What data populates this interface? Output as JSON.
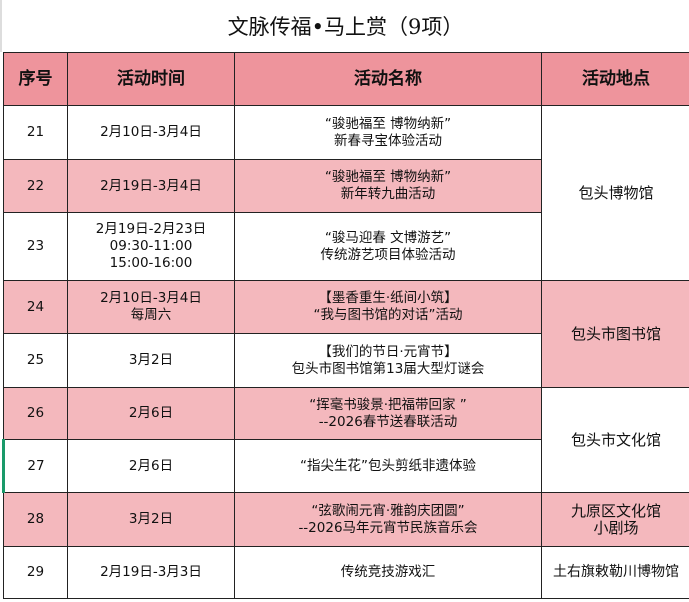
{
  "title": "文脉传福•马上赏（9项）",
  "headers": [
    "序号",
    "活动时间",
    "活动名称",
    "活动地点"
  ],
  "rows": [
    {
      "no": "21",
      "time": "2月10日-3月4日",
      "name": "“骏驰福至 博物纳新”\n新春寻宝体验活动"
    },
    {
      "no": "22",
      "time": "2月19日-3月4日",
      "name": "“骏驰福至 博物纳新”\n新年转九曲活动"
    },
    {
      "no": "23",
      "time": "2月19日-2月23日\n09:30-11:00\n15:00-16:00",
      "name": "“骏马迎春 文博游艺”\n传统游艺项目体验活动"
    },
    {
      "no": "24",
      "time": "2月10日-3月4日\n每周六",
      "name": "【墨香重生·纸间小筑】\n“我与图书馆的对话”活动"
    },
    {
      "no": "25",
      "time": "3月2日",
      "name": "【我们的节日·元宵节】\n包头市图书馆第13届大型灯谜会"
    },
    {
      "no": "26",
      "time": "2月6日",
      "name": "“挥毫书骏景·把福带回家 ”\n--2026春节送春联活动"
    },
    {
      "no": "27",
      "time": "2月6日",
      "name": "“指尖生花”包头剪纸非遗体验"
    },
    {
      "no": "28",
      "time": "3月2日",
      "name": "“弦歌闹元宵·雅韵庆团圆”\n--2026马年元宵节民族音乐会"
    },
    {
      "no": "29",
      "time": "2月19日-3月3日",
      "name": "传统竞技游戏汇"
    }
  ],
  "locations": [
    "包头博物馆",
    "包头市图书馆",
    "包头市文化馆",
    "九原区文化馆\n小剧场",
    "土右旗敕勒川博物馆"
  ],
  "colors": {
    "header": "#ee949c",
    "highlight_row": "#f4b8bd"
  }
}
